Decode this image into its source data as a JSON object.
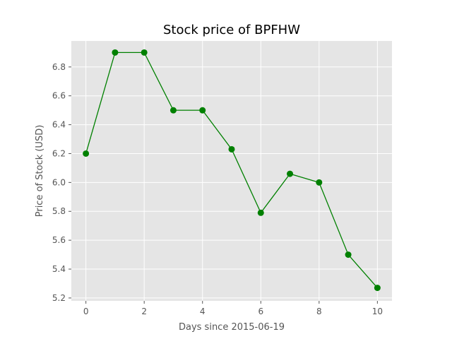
{
  "chart_data": {
    "type": "line",
    "title": "Stock price of BPFHW",
    "xlabel": "Days since 2015-06-19",
    "ylabel": "Price of Stock (USD)",
    "x": [
      0,
      1,
      2,
      3,
      4,
      5,
      6,
      7,
      8,
      9,
      10
    ],
    "xlim": [
      -0.5,
      10.5
    ],
    "ylim": [
      5.18,
      6.98
    ],
    "x_ticks": [
      0,
      2,
      4,
      6,
      8,
      10
    ],
    "y_ticks": [
      5.2,
      5.4,
      5.6,
      5.8,
      6.0,
      6.2,
      6.4,
      6.6,
      6.8
    ],
    "y_tick_labels": [
      "5.2",
      "5.4",
      "5.6",
      "5.8",
      "6.0",
      "6.2",
      "6.4",
      "6.6",
      "6.8"
    ],
    "grid": true,
    "series": [
      {
        "values": [
          6.2,
          6.9,
          6.9,
          6.5,
          6.5,
          6.23,
          5.79,
          6.06,
          6.0,
          5.5,
          5.27
        ],
        "color": "#008000"
      }
    ],
    "background_color": "#e5e5e5",
    "grid_color": "#ffffff"
  }
}
